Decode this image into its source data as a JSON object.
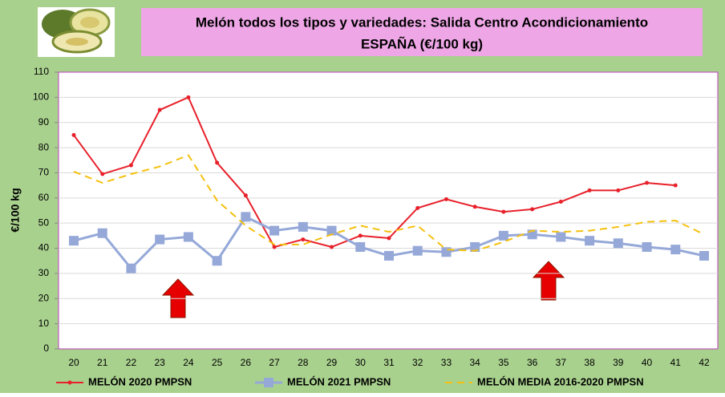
{
  "chart_data": {
    "type": "line",
    "title": "Melón todos los tipos y variedades: Salida Centro Acondicionamiento",
    "subtitle": "ESPAÑA (€/100 kg)",
    "y_label": "€/100 kg",
    "categories": [
      "20",
      "21",
      "22",
      "23",
      "24",
      "25",
      "26",
      "27",
      "28",
      "29",
      "30",
      "31",
      "32",
      "33",
      "34",
      "35",
      "36",
      "37",
      "38",
      "39",
      "40",
      "41",
      "42"
    ],
    "series": [
      {
        "name": "MELÓN 2020 PMPSN",
        "color": "#e8202a",
        "marker": "dot",
        "dash": false,
        "values": [
          85,
          69.5,
          73,
          95,
          100,
          74,
          61,
          40.5,
          43.5,
          40.5,
          45,
          44,
          56,
          59.5,
          56.5,
          54.5,
          55.5,
          58.5,
          63,
          63,
          66,
          65,
          null
        ]
      },
      {
        "name": "MELÓN 2021 PMPSN",
        "color": "#95a8d8",
        "marker": "square",
        "dash": false,
        "values": [
          43,
          46,
          32,
          43.5,
          44.5,
          35,
          52.5,
          47,
          48.5,
          47,
          40.5,
          37,
          39,
          38.5,
          40.5,
          45,
          45.5,
          44.5,
          43,
          42,
          40.5,
          39.5,
          37
        ]
      },
      {
        "name": "MELÓN MEDIA 2016-2020 PMPSN",
        "color": "#f5c010",
        "marker": "none",
        "dash": true,
        "values": [
          70.5,
          66,
          69.5,
          72.5,
          77,
          59,
          49,
          41.5,
          41.5,
          45.5,
          49,
          46.5,
          49,
          39.5,
          39,
          42.5,
          47,
          46.5,
          47,
          48.5,
          50.5,
          51,
          45.5
        ]
      }
    ],
    "ylim": [
      0,
      110
    ],
    "yticks": [
      0,
      10,
      20,
      30,
      40,
      50,
      60,
      70,
      80,
      90,
      100,
      110
    ],
    "grid": true,
    "legend": "bottom"
  }
}
